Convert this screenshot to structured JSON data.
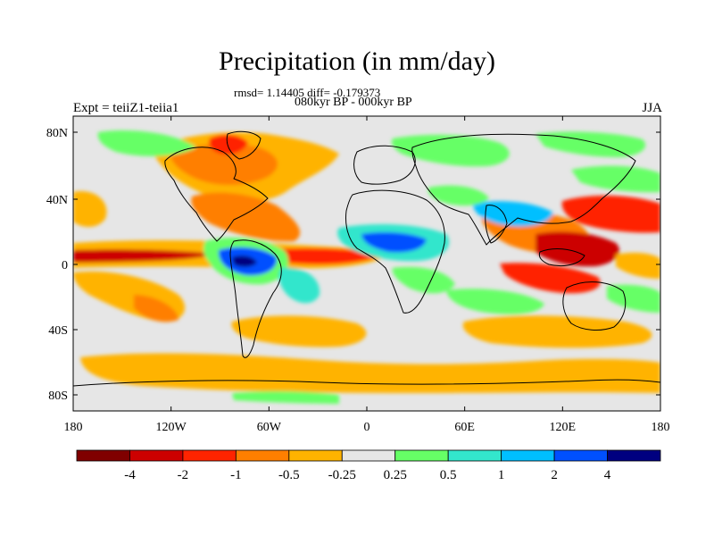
{
  "title": "Precipitation (in mm/day)",
  "stats": "rmsd= 1.14405 diff= -0.179373",
  "period": "080kyr BP - 000kyr BP",
  "experiment": "Expt = teiiZ1-teiia1",
  "season": "JJA",
  "map": {
    "background_color": "#e6e6e6",
    "lon_ticks": [
      "180",
      "120W",
      "60W",
      "0",
      "60E",
      "120E",
      "180"
    ],
    "lat_ticks": [
      "80N",
      "40N",
      "0",
      "40S",
      "80S"
    ]
  },
  "colorbar": {
    "labels": [
      "-4",
      "-2",
      "-1",
      "-0.5",
      "-0.25",
      "0.25",
      "0.5",
      "1",
      "2",
      "4"
    ],
    "colors": [
      "#800000",
      "#cc0000",
      "#ff2400",
      "#ff7f00",
      "#ffb300",
      "#e6e6e6",
      "#66ff66",
      "#33e6cc",
      "#00bfff",
      "#0050ff",
      "#000080"
    ]
  }
}
